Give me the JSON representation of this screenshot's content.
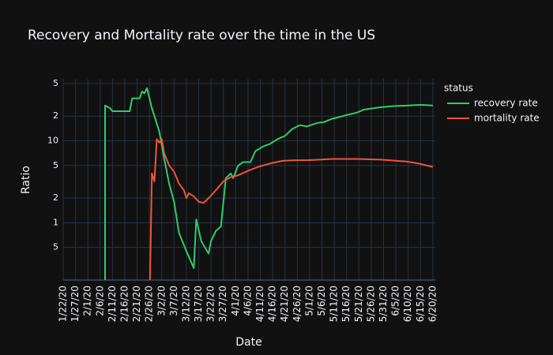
{
  "chart_data": {
    "type": "line",
    "title": "Recovery and Mortality rate over the time in the US",
    "x_label": "Date",
    "y_label": "Ratio",
    "legend_title": "status",
    "legend_position": "right",
    "log_y": true,
    "grid": true,
    "xlim": [
      "1/22/20",
      "6/21/20"
    ],
    "xticks": [
      "1/22/20",
      "1/27/20",
      "2/1/20",
      "2/6/20",
      "2/11/20",
      "2/16/20",
      "2/21/20",
      "2/26/20",
      "3/2/20",
      "3/7/20",
      "3/12/20",
      "3/17/20",
      "3/22/20",
      "3/27/20",
      "4/1/20",
      "4/6/20",
      "4/11/20",
      "4/16/20",
      "4/21/20",
      "4/26/20",
      "5/1/20",
      "5/6/20",
      "5/11/20",
      "5/16/20",
      "5/21/20",
      "5/26/20",
      "5/31/20",
      "6/5/20",
      "6/10/20",
      "6/15/20",
      "6/20/20"
    ],
    "ylim": [
      0.2,
      57
    ],
    "yticks": [
      {
        "value": 0.5,
        "label": "5"
      },
      1,
      2,
      5,
      10,
      {
        "value": 20,
        "label": "2"
      },
      {
        "value": 50,
        "label": "5"
      }
    ],
    "series": [
      {
        "name": "recovery rate",
        "color": "#2fcc71",
        "x": [
          "2/8/20",
          "2/8/20",
          "2/10/20",
          "2/11/20",
          "2/18/20",
          "2/19/20",
          "2/22/20",
          "2/23/20",
          "2/24/20",
          "2/25/20",
          "2/27/20",
          "3/1/20",
          "3/3/20",
          "3/5/20",
          "3/7/20",
          "3/9/20",
          "3/12/20",
          "3/15/20",
          "3/16/20",
          "3/18/20",
          "3/21/20",
          "3/22/20",
          "3/24/20",
          "3/26/20",
          "3/28/20",
          "3/30/20",
          "3/31/20",
          "4/2/20",
          "4/4/20",
          "4/7/20",
          "4/9/20",
          "4/12/20",
          "4/15/20",
          "4/18/20",
          "4/21/20",
          "4/24/20",
          "4/27/20",
          "4/30/20",
          "5/4/20",
          "5/7/20",
          "5/10/20",
          "5/13/20",
          "5/17/20",
          "5/20/20",
          "5/23/20",
          "5/29/20",
          "6/4/20",
          "6/10/20",
          "6/15/20",
          "6/20/20"
        ],
        "values": [
          0,
          27,
          25,
          23,
          23,
          33,
          33,
          40,
          38,
          44,
          25,
          13,
          6,
          3,
          1.8,
          0.75,
          0.45,
          0.28,
          1.1,
          0.6,
          0.42,
          0.6,
          0.8,
          0.9,
          3.5,
          4,
          3.5,
          5,
          5.5,
          5.5,
          7.5,
          8.5,
          9.2,
          10.5,
          11.5,
          14,
          15.5,
          15,
          16.5,
          17,
          18.5,
          19.5,
          21,
          22,
          24,
          25.5,
          26.5,
          27,
          27.5,
          27
        ]
      },
      {
        "name": "mortality rate",
        "color": "#ef553b",
        "x": [
          "2/26/20",
          "2/27/20",
          "2/28/20",
          "2/29/20",
          "3/1/20",
          "3/2/20",
          "3/3/20",
          "3/5/20",
          "3/7/20",
          "3/9/20",
          "3/11/20",
          "3/12/20",
          "3/13/20",
          "3/15/20",
          "3/17/20",
          "3/19/20",
          "3/21/20",
          "3/24/20",
          "3/27/20",
          "3/30/20",
          "4/2/20",
          "4/6/20",
          "4/10/20",
          "4/15/20",
          "4/20/20",
          "4/25/20",
          "4/30/20",
          "5/5/20",
          "5/10/20",
          "5/20/20",
          "5/30/20",
          "6/9/20",
          "6/14/20",
          "6/20/20"
        ],
        "values": [
          0,
          4,
          3.2,
          10.5,
          9.5,
          10.5,
          7,
          5,
          4.2,
          3,
          2.5,
          2,
          2.3,
          2.1,
          1.8,
          1.75,
          2,
          2.5,
          3.2,
          3.6,
          3.8,
          4.3,
          4.8,
          5.3,
          5.7,
          5.8,
          5.8,
          5.9,
          6,
          6,
          5.9,
          5.6,
          5.3,
          4.8
        ]
      }
    ]
  }
}
